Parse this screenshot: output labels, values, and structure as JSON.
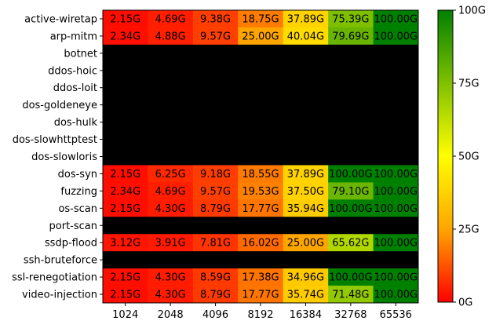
{
  "chart_data": {
    "type": "heatmap",
    "x_categories": [
      "1024",
      "2048",
      "4096",
      "8192",
      "16384",
      "32768",
      "65536"
    ],
    "y_categories": [
      "active-wiretap",
      "arp-mitm",
      "botnet",
      "ddos-hoic",
      "ddos-loit",
      "dos-goldeneye",
      "dos-hulk",
      "dos-slowhttptest",
      "dos-slowloris",
      "dos-syn",
      "fuzzing",
      "os-scan",
      "port-scan",
      "ssdp-flood",
      "ssh-bruteforce",
      "ssl-renegotiation",
      "video-injection"
    ],
    "values": [
      [
        2.15,
        4.69,
        9.38,
        18.75,
        37.89,
        75.39,
        100.0
      ],
      [
        2.34,
        4.88,
        9.57,
        25.0,
        40.04,
        79.69,
        100.0
      ],
      [
        null,
        null,
        null,
        null,
        null,
        null,
        null
      ],
      [
        null,
        null,
        null,
        null,
        null,
        null,
        null
      ],
      [
        null,
        null,
        null,
        null,
        null,
        null,
        null
      ],
      [
        null,
        null,
        null,
        null,
        null,
        null,
        null
      ],
      [
        null,
        null,
        null,
        null,
        null,
        null,
        null
      ],
      [
        null,
        null,
        null,
        null,
        null,
        null,
        null
      ],
      [
        null,
        null,
        null,
        null,
        null,
        null,
        null
      ],
      [
        2.15,
        6.25,
        9.18,
        18.55,
        37.89,
        100.0,
        100.0
      ],
      [
        2.34,
        4.69,
        9.57,
        19.53,
        37.5,
        79.1,
        100.0
      ],
      [
        2.15,
        4.3,
        8.79,
        17.77,
        35.94,
        100.0,
        100.0
      ],
      [
        null,
        null,
        null,
        null,
        null,
        null,
        null
      ],
      [
        3.12,
        3.91,
        7.81,
        16.02,
        25.0,
        65.62,
        100.0
      ],
      [
        null,
        null,
        null,
        null,
        null,
        null,
        null
      ],
      [
        2.15,
        4.3,
        8.59,
        17.38,
        34.96,
        100.0,
        100.0
      ],
      [
        2.15,
        4.3,
        8.79,
        17.77,
        35.74,
        71.48,
        100.0
      ]
    ],
    "value_suffix": "G",
    "missing_color": "#000000",
    "colorbar": {
      "range": [
        0,
        100
      ],
      "ticks": [
        0,
        25,
        50,
        75,
        100
      ],
      "tick_labels": [
        "0G",
        "25G",
        "50G",
        "75G",
        "100G"
      ],
      "colors": [
        "#ff0000",
        "#ffa500",
        "#ffff00",
        "#80c000",
        "#008000"
      ]
    },
    "title": "",
    "xlabel": "",
    "ylabel": ""
  }
}
